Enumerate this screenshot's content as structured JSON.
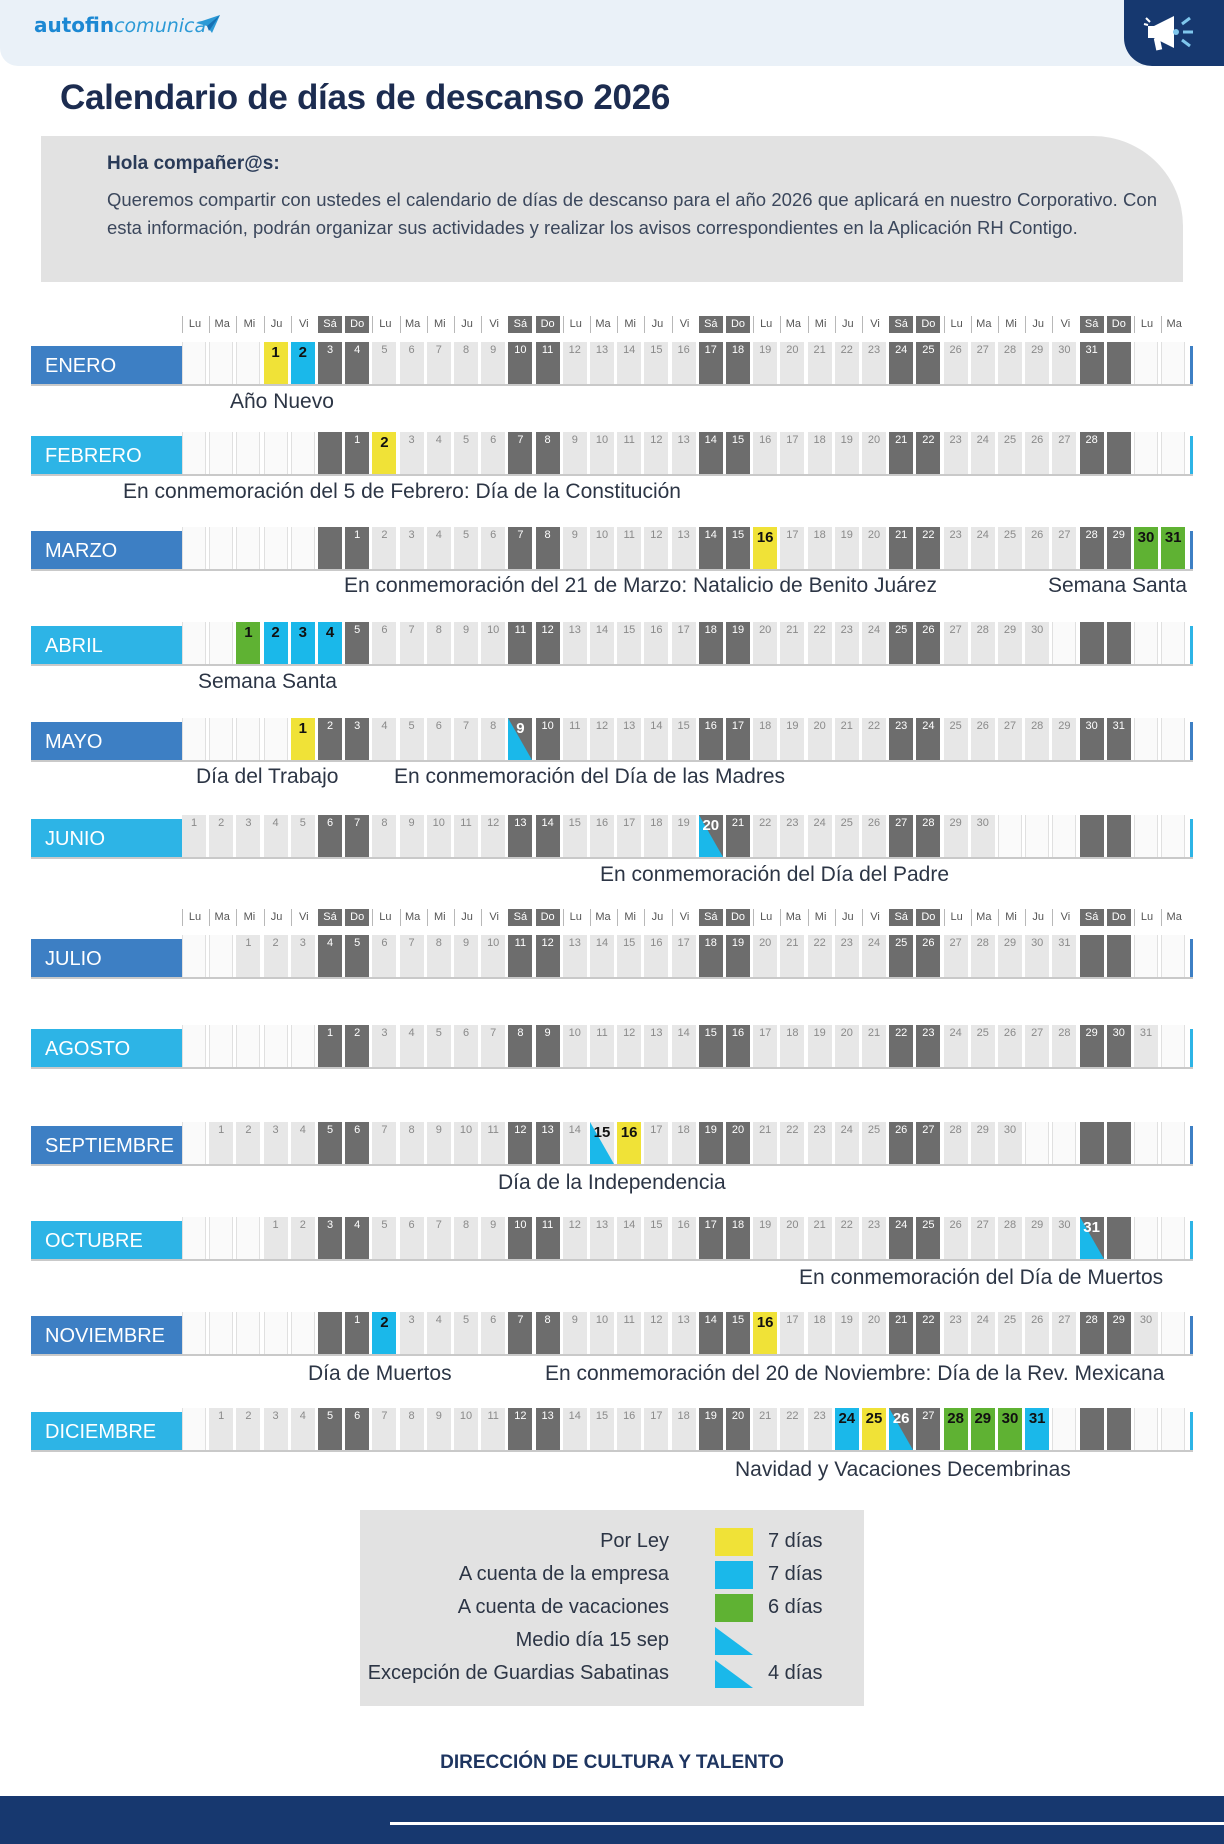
{
  "header": {
    "logo_main": "autofin",
    "logo_sub": "comunica",
    "plane_icon": "paper-plane-icon",
    "megaphone_icon": "megaphone-icon"
  },
  "title": "Calendario de días de descanso 2026",
  "intro": {
    "greeting": "Hola compañer@s:",
    "text": "Queremos compartir con ustedes el calendario de días de descanso para el año 2026 que aplicará en nuestro Corporativo. Con esta información, podrán organizar sus actividades y realizar los avisos correspondientes en la Aplicación RH Contigo."
  },
  "weekday_labels": [
    "Lu",
    "Ma",
    "Mi",
    "Ju",
    "Vi",
    "Sá",
    "Do"
  ],
  "colors": {
    "dark_label": "#3d7fc4",
    "light_label": "#2db4e6",
    "por_ley": "#f0e237",
    "empresa": "#1ab8ea",
    "vacaciones": "#5fb233",
    "weekend": "#6d6d6d"
  },
  "months": [
    {
      "name": "ENERO",
      "label_style": "dark",
      "start": 3,
      "days": 31,
      "highlights": {
        "1": "yellow",
        "2": "blue"
      }
    },
    {
      "name": "FEBRERO",
      "label_style": "light",
      "start": 6,
      "days": 28,
      "highlights": {
        "2": "yellow"
      }
    },
    {
      "name": "MARZO",
      "label_style": "dark",
      "start": 6,
      "days": 31,
      "highlights": {
        "16": "yellow",
        "30": "green",
        "31": "green"
      }
    },
    {
      "name": "ABRIL",
      "label_style": "light",
      "start": 2,
      "days": 30,
      "highlights": {
        "1": "green",
        "2": "blue",
        "3": "blue",
        "4": "blue"
      }
    },
    {
      "name": "MAYO",
      "label_style": "dark",
      "start": 4,
      "days": 31,
      "highlights": {
        "1": "yellow",
        "9": "half"
      }
    },
    {
      "name": "JUNIO",
      "label_style": "light",
      "start": 0,
      "days": 30,
      "highlights": {
        "20": "half"
      }
    },
    {
      "name": "JULIO",
      "label_style": "dark",
      "start": 2,
      "days": 31,
      "highlights": {}
    },
    {
      "name": "AGOSTO",
      "label_style": "light",
      "start": 5,
      "days": 31,
      "highlights": {}
    },
    {
      "name": "SEPTIEMBRE",
      "label_style": "dark",
      "start": 1,
      "days": 30,
      "highlights": {
        "15": "half",
        "16": "yellow"
      }
    },
    {
      "name": "OCTUBRE",
      "label_style": "light",
      "start": 3,
      "days": 31,
      "highlights": {
        "31": "half"
      }
    },
    {
      "name": "NOVIEMBRE",
      "label_style": "dark",
      "start": 6,
      "days": 30,
      "highlights": {
        "2": "blue",
        "16": "yellow"
      }
    },
    {
      "name": "DICIEMBRE",
      "label_style": "light",
      "start": 1,
      "days": 31,
      "highlights": {
        "24": "blue",
        "25": "yellow",
        "26": "half",
        "28": "green",
        "29": "green",
        "30": "green",
        "31": "blue"
      }
    }
  ],
  "holiday_notes": [
    {
      "month": 0,
      "text": "Año Nuevo"
    },
    {
      "month": 1,
      "text": "En conmemoración del 5 de Febrero: Día de la Constitución"
    },
    {
      "month": 2,
      "text": "En conmemoración del 21 de Marzo: Natalicio de Benito Juárez"
    },
    {
      "month": 2,
      "text": "Semana Santa"
    },
    {
      "month": 3,
      "text": "Semana Santa"
    },
    {
      "month": 4,
      "text": "Día del Trabajo"
    },
    {
      "month": 4,
      "text": "En conmemoración del Día de las Madres"
    },
    {
      "month": 5,
      "text": "En conmemoración del Día del Padre"
    },
    {
      "month": 8,
      "text": "Día de la Independencia"
    },
    {
      "month": 9,
      "text": "En conmemoración del Día de Muertos"
    },
    {
      "month": 10,
      "text": "Día de Muertos"
    },
    {
      "month": 10,
      "text": "En conmemoración del 20 de Noviembre: Día de la Rev. Mexicana"
    },
    {
      "month": 11,
      "text": "Navidad  y Vacaciones Decembrinas"
    }
  ],
  "legend": [
    {
      "label": "Por Ley",
      "swatch": "yellow",
      "count": "7 días"
    },
    {
      "label": "A cuenta de la empresa",
      "swatch": "blue",
      "count": "7 días"
    },
    {
      "label": "A cuenta de vacaciones",
      "swatch": "green",
      "count": "6 días"
    },
    {
      "label": "Medio día 15 sep",
      "swatch": "half",
      "count": ""
    },
    {
      "label": "Excepción de Guardias Sabatinas",
      "swatch": "half",
      "count": "4 días"
    }
  ],
  "footer": "DIRECCIÓN DE CULTURA Y TALENTO"
}
